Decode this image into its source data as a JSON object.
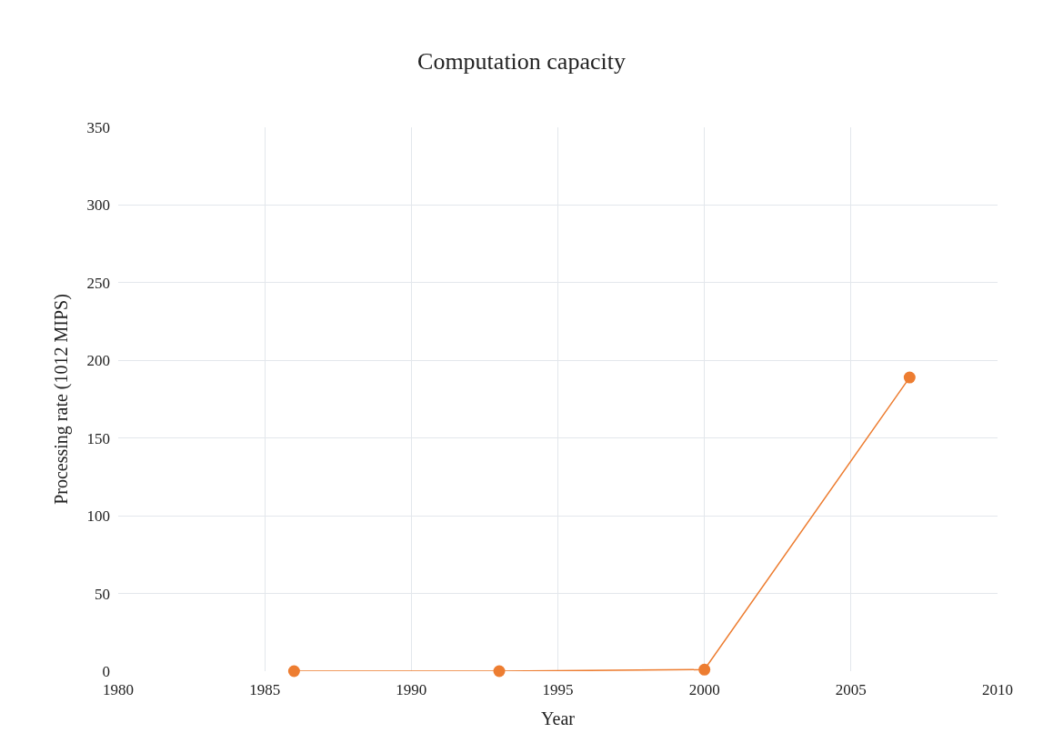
{
  "chart_data": {
    "type": "line",
    "title": "Computation capacity",
    "xlabel": "Year",
    "ylabel": "Processing rate (1012 MIPS)",
    "x": [
      1986,
      1993,
      2000,
      2007
    ],
    "series": [
      {
        "color": "#ed7d31",
        "values": [
          0,
          0,
          1,
          189
        ]
      }
    ],
    "xlim": [
      1980,
      2010
    ],
    "xticks": [
      1980,
      1985,
      1990,
      1995,
      2000,
      2005,
      2010
    ],
    "ylim": [
      0,
      350
    ],
    "yticks": [
      0,
      50,
      100,
      150,
      200,
      250,
      300,
      350
    ],
    "grid": true,
    "marker": "circle",
    "line_style": "solid",
    "legend": false
  }
}
